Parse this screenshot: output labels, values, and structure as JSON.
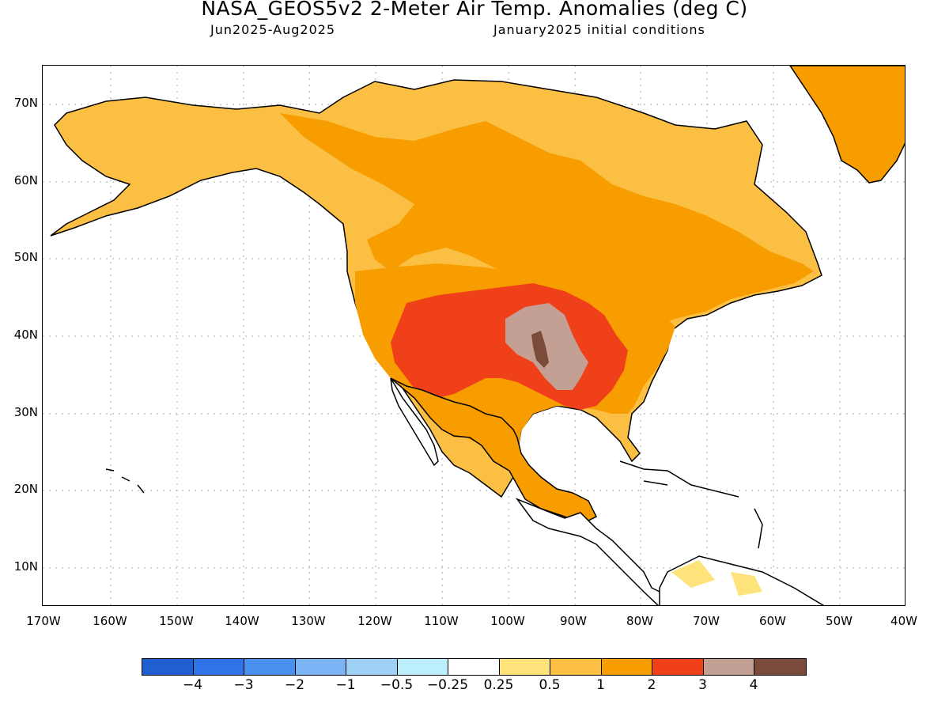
{
  "title": "NASA_GEOS5v2 2-Meter Air Temp. Anomalies (deg C)",
  "subtitle_left": "Jun2025-Aug2025",
  "subtitle_right": "January2025 initial conditions",
  "lat_labels": [
    "70N",
    "60N",
    "50N",
    "40N",
    "30N",
    "20N",
    "10N"
  ],
  "lon_labels": [
    "170W",
    "160W",
    "150W",
    "140W",
    "130W",
    "120W",
    "110W",
    "100W",
    "90W",
    "80W",
    "70W",
    "60W",
    "50W",
    "40W"
  ],
  "colorbar": {
    "colors": [
      "#1f5fd0",
      "#2f73e6",
      "#4a90ee",
      "#7ab4f4",
      "#9fd0f6",
      "#bdeefb",
      "#ffffff",
      "#fde37a",
      "#fbc043",
      "#f79d00",
      "#f0401a",
      "#c49f94",
      "#7a4a3a"
    ],
    "labels": [
      "-4",
      "-3",
      "-2",
      "-1",
      "-0.5",
      "-0.25",
      "0.25",
      "0.5",
      "1",
      "2",
      "3",
      "4"
    ]
  }
}
